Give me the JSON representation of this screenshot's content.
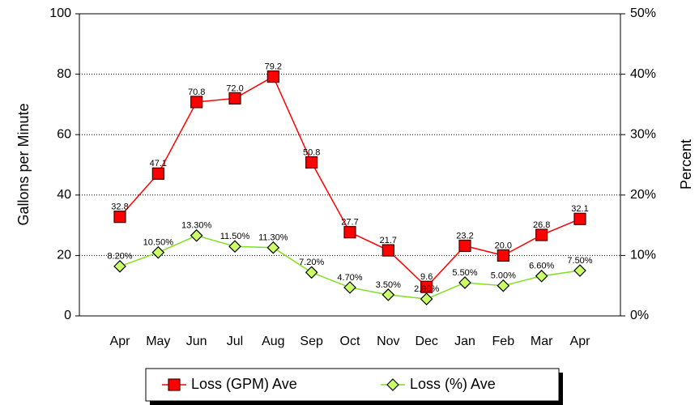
{
  "chart_data": {
    "type": "line",
    "categories": [
      "Apr",
      "May",
      "Jun",
      "Jul",
      "Aug",
      "Sep",
      "Oct",
      "Nov",
      "Dec",
      "Jan",
      "Feb",
      "Mar",
      "Apr"
    ],
    "ylabel": "Gallons per Minute",
    "y2label": "Percent",
    "ylim": [
      0,
      100
    ],
    "yticks": [
      0,
      20,
      40,
      60,
      80,
      100
    ],
    "y2lim": [
      0,
      50
    ],
    "y2ticks": [
      {
        "value": 0,
        "label": "0%"
      },
      {
        "value": 10,
        "label": "10%"
      },
      {
        "value": 20,
        "label": "20%"
      },
      {
        "value": 30,
        "label": "30%"
      },
      {
        "value": 40,
        "label": "40%"
      },
      {
        "value": 50,
        "label": "50%"
      }
    ],
    "grid": true,
    "legend": "bottom",
    "series": [
      {
        "name": "Loss (GPM) Ave",
        "color": "#ff0000",
        "marker": "square",
        "axis": "y",
        "values": [
          32.8,
          47.1,
          70.8,
          72.0,
          79.2,
          50.8,
          27.7,
          21.7,
          9.6,
          23.2,
          20.0,
          26.8,
          32.1
        ],
        "value_labels": [
          "32.8",
          "47.1",
          "70.8",
          "72.0",
          "79.2",
          "50.8",
          "27.7",
          "21.7",
          "9.6",
          "23.2",
          "20.0",
          "26.8",
          "32.1"
        ]
      },
      {
        "name": "Loss (%) Ave",
        "color": "#80e020",
        "marker": "diamond",
        "axis": "y2",
        "values": [
          8.2,
          10.5,
          13.3,
          11.5,
          11.3,
          7.2,
          4.7,
          3.5,
          2.8,
          5.5,
          5.0,
          6.6,
          7.5
        ],
        "value_labels": [
          "8.20%",
          "10.50%",
          "13.30%",
          "11.50%",
          "11.30%",
          "7.20%",
          "4.70%",
          "3.50%",
          "2.80%",
          "5.50%",
          "5.00%",
          "6.60%",
          "7.50%"
        ]
      }
    ]
  }
}
